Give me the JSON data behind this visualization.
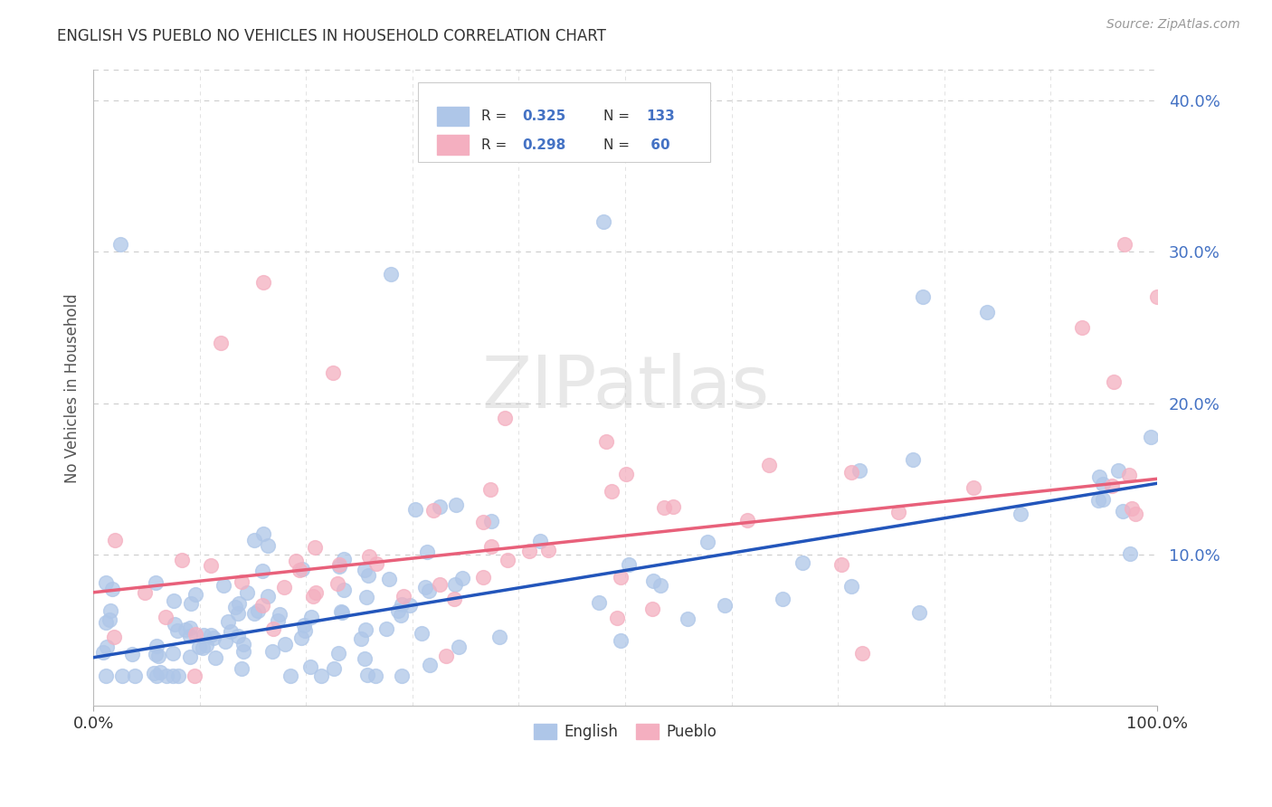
{
  "title": "ENGLISH VS PUEBLO NO VEHICLES IN HOUSEHOLD CORRELATION CHART",
  "source": "Source: ZipAtlas.com",
  "ylabel": "No Vehicles in Household",
  "xlim": [
    0.0,
    1.0
  ],
  "ylim": [
    0.0,
    0.42
  ],
  "english_R": 0.325,
  "english_N": 133,
  "pueblo_R": 0.298,
  "pueblo_N": 60,
  "english_color": "#aec6e8",
  "pueblo_color": "#f4afc0",
  "english_line_color": "#2255bb",
  "pueblo_line_color": "#e8607a",
  "ytick_color": "#4472c4",
  "watermark": "ZIPatlas",
  "background_color": "#ffffff",
  "english_line_intercept": 0.032,
  "english_line_slope": 0.115,
  "pueblo_line_intercept": 0.075,
  "pueblo_line_slope": 0.075
}
